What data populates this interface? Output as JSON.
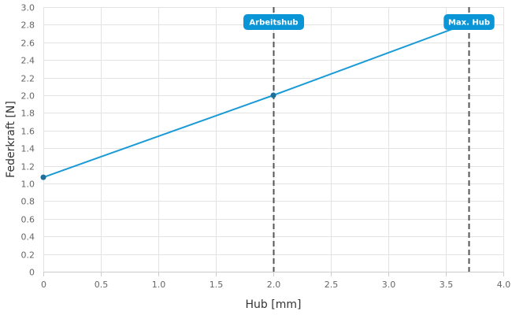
{
  "chart_data": {
    "type": "line",
    "xlabel": "Hub [mm]",
    "ylabel": "Federkraft [N]",
    "xlim": [
      0,
      4.0
    ],
    "ylim": [
      0,
      3.0
    ],
    "x_ticks": [
      0,
      0.5,
      1.0,
      1.5,
      2.0,
      2.5,
      3.0,
      3.5,
      4.0
    ],
    "x_tick_labels": [
      "0",
      "0.5",
      "1.0",
      "1.5",
      "2.0",
      "2.5",
      "3.0",
      "3.5",
      "4.0"
    ],
    "y_ticks": [
      0,
      0.2,
      0.4,
      0.6,
      0.8,
      1.0,
      1.2,
      1.4,
      1.6,
      1.8,
      2.0,
      2.2,
      2.4,
      2.6,
      2.8,
      3.0
    ],
    "y_tick_labels": [
      "0",
      "0.2",
      "0.4",
      "0.6",
      "0.8",
      "1.0",
      "1.2",
      "1.4",
      "1.6",
      "1.8",
      "2.0",
      "2.2",
      "2.4",
      "2.6",
      "2.8",
      "3.0"
    ],
    "grid": true,
    "series": [
      {
        "x": [
          0,
          2.0,
          3.7
        ],
        "y": [
          1.07,
          2.0,
          2.82
        ],
        "color": "#1a9ad6",
        "points": [
          {
            "x": 0,
            "y": 1.07
          },
          {
            "x": 2.0,
            "y": 2.0
          }
        ],
        "point_color": "#1f6f9a"
      }
    ],
    "markers": [
      {
        "x": 2.0,
        "label": "Arbeitshub"
      },
      {
        "x": 3.7,
        "label": "Max. Hub"
      }
    ],
    "marker_line_color": "#555555",
    "marker_label_bg": "#0a96d6"
  }
}
